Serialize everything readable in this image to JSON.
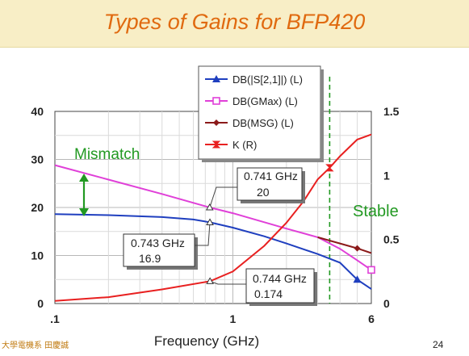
{
  "slide": {
    "title": "Types of Gains for BFP420",
    "footer_left": "大學電機系 田慶誠",
    "page_number": "24"
  },
  "chart_data": {
    "type": "line",
    "xlabel": "Frequency (GHz)",
    "x_scale": "log",
    "xlim": [
      0.1,
      6
    ],
    "x_ticks": [
      {
        "value": 0.1,
        "label": ".1"
      },
      {
        "value": 1,
        "label": "1"
      },
      {
        "value": 6,
        "label": "6"
      }
    ],
    "left_axis": {
      "ylim": [
        0,
        40
      ],
      "ticks": [
        "0",
        "10",
        "20",
        "30",
        "40"
      ]
    },
    "right_axis": {
      "ylim": [
        0,
        1.5
      ],
      "ticks": [
        "0",
        "0.5",
        "1",
        "1.5"
      ]
    },
    "grid": true,
    "legend_position": "top-center",
    "series": [
      {
        "name": "DB(|S[2,1]|) (L)",
        "axis": "left",
        "color": "#1f3fbf",
        "marker": "triangle",
        "x": [
          0.1,
          0.2,
          0.4,
          0.6,
          0.743,
          1.0,
          1.5,
          2.0,
          3.0,
          4.0,
          5.0,
          6.0
        ],
        "y": [
          18.6,
          18.4,
          18.0,
          17.5,
          16.9,
          15.8,
          14.0,
          12.5,
          10.3,
          8.5,
          5.0,
          3.0
        ]
      },
      {
        "name": "DB(GMax) (L)",
        "axis": "left",
        "color": "#e040d8",
        "marker": "square",
        "x": [
          0.1,
          0.2,
          0.4,
          0.741,
          1.0,
          2.0,
          3.0,
          4.0,
          5.0,
          6.0
        ],
        "y": [
          28.8,
          25.8,
          22.8,
          20.0,
          18.8,
          15.6,
          13.8,
          11.4,
          9.0,
          7.0
        ]
      },
      {
        "name": "DB(MSG) (L)",
        "axis": "left",
        "color": "#8b1a1a",
        "marker": "diamond",
        "x": [
          3.0,
          4.0,
          5.0,
          6.0
        ],
        "y": [
          13.8,
          12.5,
          11.5,
          10.5
        ]
      },
      {
        "name": "K (R)",
        "axis": "right",
        "color": "#e82020",
        "marker": "bowtie",
        "x": [
          0.1,
          0.2,
          0.4,
          0.744,
          1.0,
          1.5,
          2.0,
          2.5,
          3.0,
          3.5,
          4.0,
          5.0,
          6.0
        ],
        "y": [
          0.02,
          0.05,
          0.11,
          0.174,
          0.25,
          0.45,
          0.63,
          0.8,
          0.97,
          1.06,
          1.15,
          1.28,
          1.32
        ]
      }
    ],
    "stability_marker": {
      "x": 3.5,
      "label": "Stable",
      "color": "#229922"
    },
    "annotations": [
      {
        "text": "Mismatch",
        "color": "#229922"
      },
      {
        "freq": "0.741 GHz",
        "value": "20",
        "series": "DB(GMax) (L)",
        "x": 0.741,
        "y": 20.0
      },
      {
        "freq": "0.743 GHz",
        "value": "16.9",
        "series": "DB(|S[2,1]|) (L)",
        "x": 0.743,
        "y": 16.9
      },
      {
        "freq": "0.744 GHz",
        "value": "0.174",
        "series": "K (R)",
        "x": 0.744,
        "y": 0.174
      }
    ]
  }
}
